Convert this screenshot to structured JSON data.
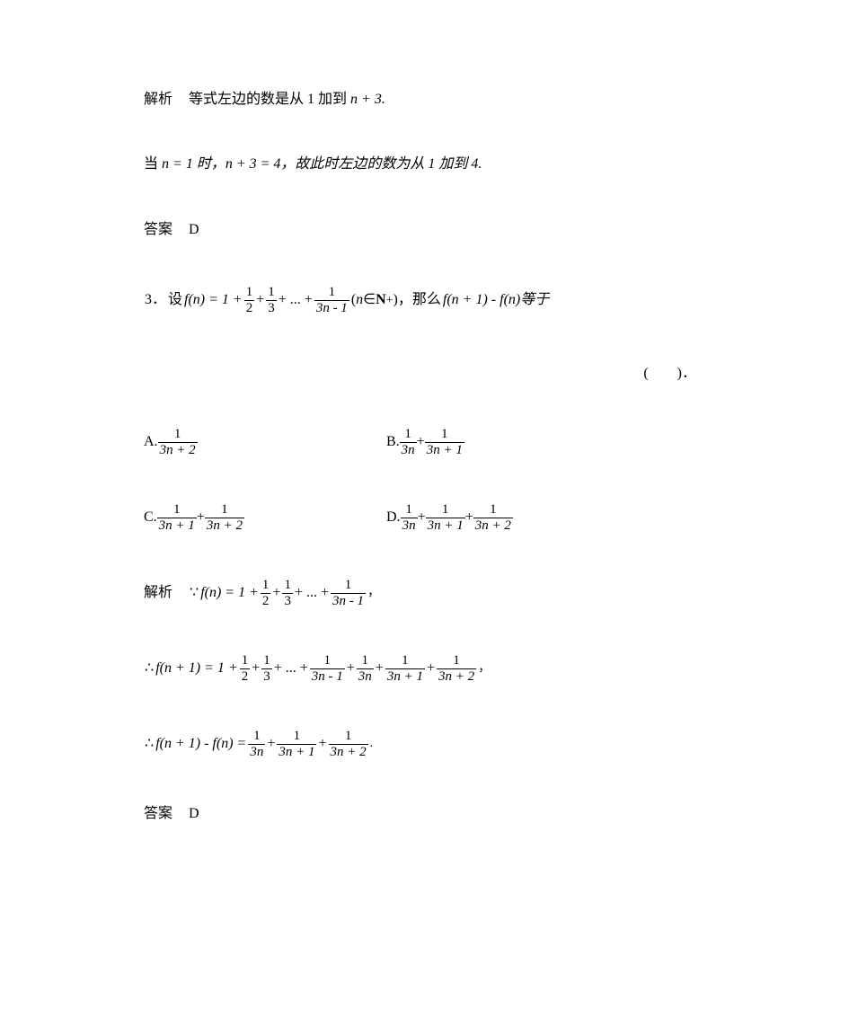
{
  "labels": {
    "analysis": "解析",
    "answer": "答案"
  },
  "prev_analysis": {
    "line1_prefix": "等式左边的数是从 1 加到 ",
    "line1_expr": "n + 3.",
    "line2_a": "当 ",
    "line2_b": "n = 1 时，",
    "line2_c": "n + 3 = 4，故此时左边的数为从 1 加到 4."
  },
  "prev_answer": "D",
  "q3": {
    "num": "3．",
    "lead": "设 ",
    "fn_eq": "f(n) = 1 + ",
    "plus": " + ",
    "dots": " + ... + ",
    "last_den": "3n - 1",
    "cond": "(n∈N₊)，那么 ",
    "tail": "f(n + 1) - f(n)等于",
    "paren": "(　　)．"
  },
  "opts": {
    "A": "A.",
    "B": "B.",
    "C": "C.",
    "D": "D.",
    "den_3n": "3n",
    "den_3n1": "3n + 1",
    "den_3n2": "3n + 2",
    "num1": "1"
  },
  "sol": {
    "because": "∵",
    "therefore": "∴",
    "fn": "f(n) = 1 + ",
    "fn1": "f(n + 1) = 1 + ",
    "diff": "f(n + 1) - f(n) = ",
    "half_num": "1",
    "half_den": "2",
    "third_num": "1",
    "third_den": "3",
    "dots": " + ... + ",
    "plus": " + ",
    "den_3nm1": "3n - 1",
    "den_3n": "3n",
    "den_3n1": "3n + 1",
    "den_3n2": "3n + 2",
    "comma": "，",
    "period": "."
  },
  "q3_answer": "D"
}
